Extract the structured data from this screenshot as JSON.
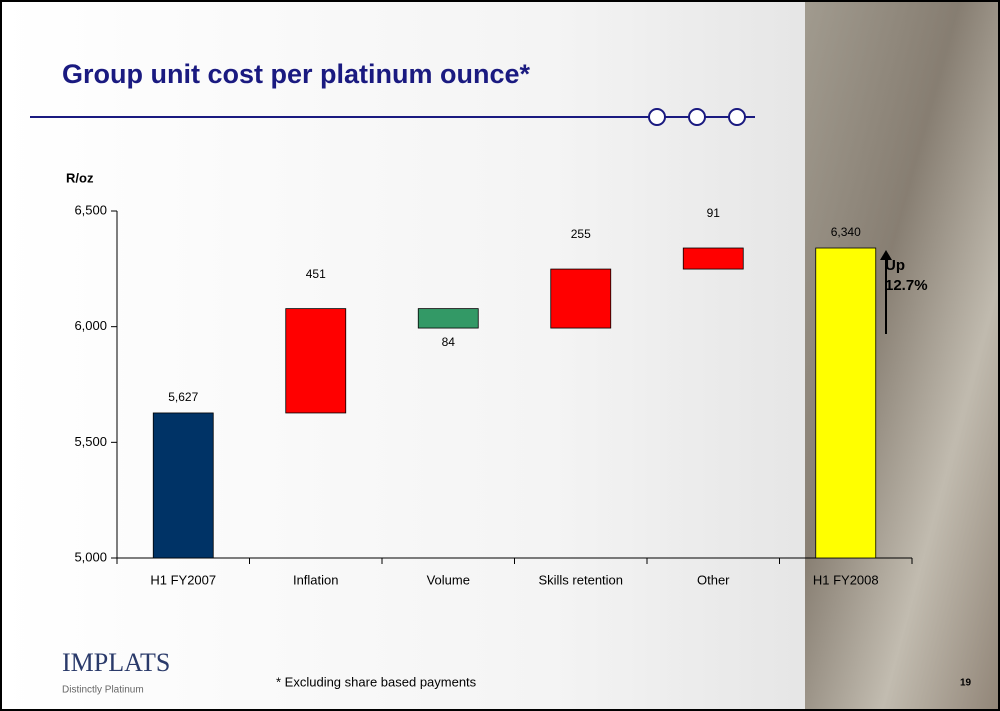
{
  "chart_data": {
    "type": "waterfall",
    "title": "Group unit cost per platinum ounce*",
    "y_label": "R/oz",
    "categories": [
      "H1 FY2007",
      "Inflation",
      "Volume",
      "Skills retention",
      "Other",
      "H1 FY2008"
    ],
    "values": [
      5627,
      451,
      -84,
      255,
      91,
      6340
    ],
    "value_labels": [
      "5,627",
      "451",
      "84",
      "255",
      "91",
      "6,340"
    ],
    "colors": [
      "#003366",
      "#ff0000",
      "#339966",
      "#ff0000",
      "#ff0000",
      "#ffff00"
    ],
    "ylim": [
      5000,
      6500
    ],
    "yticks": [
      {
        "value": 5000,
        "label": "5,000"
      },
      {
        "value": 5500,
        "label": "5,500"
      },
      {
        "value": 6000,
        "label": "6,000"
      },
      {
        "value": 6500,
        "label": "6,500"
      }
    ],
    "annotation": [
      "Up",
      "12.7%"
    ]
  },
  "slide": {
    "footnote": "* Excluding share based payments",
    "page_number": "19",
    "logo": "IMPLATS",
    "logo_tagline": "Distinctly Platinum"
  }
}
